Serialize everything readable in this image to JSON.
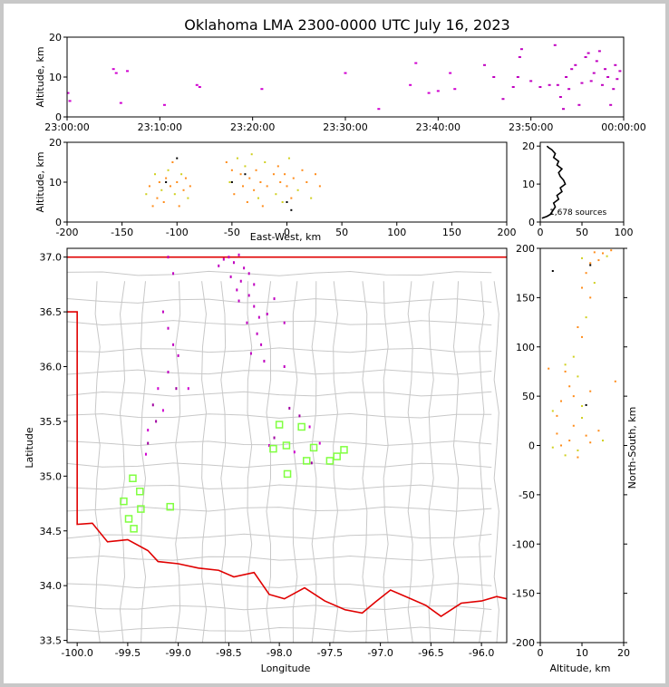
{
  "title": "Oklahoma LMA 2300-0000 UTC July 16, 2023",
  "colors": {
    "early": "#d000d0",
    "mid": "#ff8c1a",
    "late": "#d0d020",
    "station": "#80ff40",
    "border": "#e00000",
    "county": "#c8c8c8",
    "density": "#000000"
  },
  "chart_data": [
    {
      "type": "scatter",
      "name_key": "time-altitude",
      "xlabel": "",
      "ylabel": "Altitude, km",
      "xlim": [
        0,
        60
      ],
      "ylim": [
        0,
        20
      ],
      "xticks": [
        0,
        10,
        20,
        30,
        40,
        50,
        60
      ],
      "xtick_labels": [
        "23:00:00",
        "23:10:00",
        "23:20:00",
        "23:30:00",
        "23:40:00",
        "23:50:00",
        "00:00:00"
      ],
      "yticks": [
        0,
        10,
        20
      ],
      "points": [
        [
          0.1,
          6
        ],
        [
          0.3,
          4
        ],
        [
          5,
          12
        ],
        [
          5.3,
          11
        ],
        [
          6.5,
          11.5
        ],
        [
          5.8,
          3.5
        ],
        [
          10.5,
          3
        ],
        [
          14,
          8
        ],
        [
          14.3,
          7.5
        ],
        [
          21,
          7
        ],
        [
          30,
          11
        ],
        [
          33.6,
          2
        ],
        [
          37,
          8
        ],
        [
          37.6,
          13.5
        ],
        [
          39,
          6
        ],
        [
          40,
          6.5
        ],
        [
          41.3,
          11
        ],
        [
          41.8,
          7
        ],
        [
          45,
          13
        ],
        [
          46,
          10
        ],
        [
          47,
          4.5
        ],
        [
          48.1,
          7.5
        ],
        [
          48.6,
          10
        ],
        [
          48.8,
          15
        ],
        [
          49,
          17
        ],
        [
          50,
          9
        ],
        [
          51,
          7.5
        ],
        [
          52,
          8
        ],
        [
          52.6,
          18
        ],
        [
          52.9,
          8
        ],
        [
          53.2,
          5
        ],
        [
          53.5,
          2
        ],
        [
          53.8,
          10
        ],
        [
          54.1,
          7
        ],
        [
          54.4,
          12
        ],
        [
          54.8,
          13
        ],
        [
          55.2,
          3
        ],
        [
          55.5,
          8.5
        ],
        [
          55.9,
          15
        ],
        [
          56.2,
          16
        ],
        [
          56.5,
          9
        ],
        [
          56.8,
          11
        ],
        [
          57.1,
          14
        ],
        [
          57.4,
          16.5
        ],
        [
          57.7,
          8
        ],
        [
          58,
          12
        ],
        [
          58.3,
          10
        ],
        [
          58.6,
          3
        ],
        [
          58.9,
          7
        ],
        [
          59.1,
          13
        ],
        [
          59.3,
          9.5
        ],
        [
          59.6,
          11.5
        ]
      ]
    },
    {
      "type": "scatter",
      "name_key": "east-west-altitude",
      "xlabel": "East-West, km",
      "ylabel": "Altitude, km",
      "xlim": [
        -200,
        200
      ],
      "ylim": [
        0,
        20
      ],
      "xticks": [
        -200,
        -150,
        -100,
        -50,
        0,
        50,
        100,
        150,
        200
      ],
      "yticks": [
        0,
        10,
        20
      ],
      "points": [
        [
          -128,
          7
        ],
        [
          -125,
          9
        ],
        [
          -122,
          4
        ],
        [
          -120,
          12
        ],
        [
          -118,
          6
        ],
        [
          -116,
          10
        ],
        [
          -114,
          8
        ],
        [
          -112,
          5
        ],
        [
          -110,
          11
        ],
        [
          -108,
          13
        ],
        [
          -106,
          9
        ],
        [
          -104,
          15
        ],
        [
          -102,
          7
        ],
        [
          -100,
          10
        ],
        [
          -98,
          4
        ],
        [
          -96,
          12
        ],
        [
          -94,
          8
        ],
        [
          -92,
          11
        ],
        [
          -90,
          6
        ],
        [
          -88,
          9
        ],
        [
          -55,
          15
        ],
        [
          -52,
          10
        ],
        [
          -50,
          13
        ],
        [
          -48,
          7
        ],
        [
          -45,
          16
        ],
        [
          -42,
          12
        ],
        [
          -40,
          9
        ],
        [
          -38,
          14
        ],
        [
          -36,
          5
        ],
        [
          -34,
          11
        ],
        [
          -32,
          17
        ],
        [
          -30,
          8
        ],
        [
          -28,
          13
        ],
        [
          -26,
          6
        ],
        [
          -24,
          10
        ],
        [
          -22,
          4
        ],
        [
          -20,
          15
        ],
        [
          -18,
          9
        ],
        [
          -12,
          12
        ],
        [
          -10,
          7
        ],
        [
          -8,
          14
        ],
        [
          -6,
          10
        ],
        [
          -4,
          5
        ],
        [
          -2,
          12
        ],
        [
          0,
          9
        ],
        [
          2,
          16
        ],
        [
          4,
          6
        ],
        [
          6,
          11
        ],
        [
          10,
          8
        ],
        [
          14,
          13
        ],
        [
          18,
          10
        ],
        [
          22,
          6
        ],
        [
          26,
          12
        ],
        [
          30,
          9
        ]
      ],
      "dark_points": [
        [
          -110,
          10
        ],
        [
          -100,
          16
        ],
        [
          -50,
          10
        ],
        [
          -38,
          12
        ],
        [
          0,
          5
        ],
        [
          4,
          3
        ]
      ]
    },
    {
      "type": "line",
      "name_key": "altitude-density",
      "xlim": [
        0,
        100
      ],
      "ylim": [
        0,
        21
      ],
      "xticks": [
        0,
        50,
        100
      ],
      "yticks": [
        0,
        10,
        20
      ],
      "annotation": "1,678 sources",
      "profile": [
        [
          2,
          1
        ],
        [
          8,
          1.5
        ],
        [
          12,
          2
        ],
        [
          15,
          3
        ],
        [
          18,
          4
        ],
        [
          16,
          5
        ],
        [
          22,
          6
        ],
        [
          20,
          7
        ],
        [
          26,
          8
        ],
        [
          24,
          9
        ],
        [
          30,
          10
        ],
        [
          28,
          11
        ],
        [
          24,
          12
        ],
        [
          22,
          13
        ],
        [
          26,
          14
        ],
        [
          20,
          15
        ],
        [
          22,
          16
        ],
        [
          16,
          17
        ],
        [
          18,
          18
        ],
        [
          14,
          19
        ],
        [
          10,
          19.6
        ],
        [
          8,
          20
        ]
      ]
    },
    {
      "type": "scatter",
      "name_key": "plan-view",
      "xlabel": "Longitude",
      "ylabel": "Latitude",
      "xlim": [
        -100.1,
        -95.75
      ],
      "ylim": [
        33.48,
        37.08
      ],
      "xticks": [
        -100.0,
        -99.5,
        -99.0,
        -98.5,
        -98.0,
        -97.5,
        -97.0,
        -96.5,
        -96.0
      ],
      "xtick_labels": [
        "-100.0",
        "-99.5",
        "-99.0",
        "-98.5",
        "-98.0",
        "-97.5",
        "-97.0",
        "-96.5",
        "-96.0"
      ],
      "yticks": [
        33.5,
        34.0,
        34.5,
        35.0,
        35.5,
        36.0,
        36.5,
        37.0
      ],
      "ytick_labels": [
        "33.5",
        "34.0",
        "34.5",
        "35.0",
        "35.5",
        "36.0",
        "36.5",
        "37.0"
      ],
      "sources": [
        [
          -98.5,
          37.0
        ],
        [
          -98.45,
          36.95
        ],
        [
          -98.4,
          37.02
        ],
        [
          -98.35,
          36.9
        ],
        [
          -98.3,
          36.85
        ],
        [
          -98.38,
          36.78
        ],
        [
          -98.42,
          36.7
        ],
        [
          -98.3,
          36.65
        ],
        [
          -98.25,
          36.55
        ],
        [
          -98.2,
          36.45
        ],
        [
          -98.32,
          36.4
        ],
        [
          -98.22,
          36.3
        ],
        [
          -98.18,
          36.2
        ],
        [
          -98.28,
          36.12
        ],
        [
          -98.15,
          36.05
        ],
        [
          -98.55,
          36.98
        ],
        [
          -98.6,
          36.92
        ],
        [
          -98.48,
          36.82
        ],
        [
          -98.4,
          36.6
        ],
        [
          -98.25,
          36.75
        ],
        [
          -98.12,
          36.48
        ],
        [
          -98.05,
          36.62
        ],
        [
          -97.95,
          36.4
        ],
        [
          -97.95,
          36.0
        ],
        [
          -99.1,
          37.0
        ],
        [
          -99.05,
          36.85
        ],
        [
          -99.15,
          36.5
        ],
        [
          -99.1,
          36.35
        ],
        [
          -99.05,
          36.2
        ],
        [
          -99.0,
          36.1
        ],
        [
          -99.1,
          35.95
        ],
        [
          -99.2,
          35.8
        ],
        [
          -99.25,
          35.65
        ],
        [
          -99.15,
          35.6
        ],
        [
          -99.22,
          35.5
        ],
        [
          -99.3,
          35.42
        ],
        [
          -99.3,
          35.3
        ],
        [
          -99.32,
          35.2
        ],
        [
          -99.02,
          35.8
        ],
        [
          -98.9,
          35.8
        ],
        [
          -98.05,
          35.35
        ],
        [
          -98.1,
          35.28
        ],
        [
          -97.9,
          35.62
        ],
        [
          -97.85,
          35.22
        ],
        [
          -97.8,
          35.55
        ],
        [
          -97.6,
          35.3
        ],
        [
          -97.68,
          35.12
        ],
        [
          -97.7,
          35.45
        ]
      ],
      "stations": [
        [
          -98.0,
          35.47
        ],
        [
          -98.06,
          35.25
        ],
        [
          -97.93,
          35.28
        ],
        [
          -97.92,
          35.02
        ],
        [
          -97.78,
          35.45
        ],
        [
          -97.73,
          35.14
        ],
        [
          -97.66,
          35.26
        ],
        [
          -97.5,
          35.14
        ],
        [
          -97.43,
          35.18
        ],
        [
          -97.36,
          35.24
        ],
        [
          -99.45,
          34.98
        ],
        [
          -99.38,
          34.86
        ],
        [
          -99.54,
          34.77
        ],
        [
          -99.37,
          34.7
        ],
        [
          -99.08,
          34.72
        ],
        [
          -99.49,
          34.61
        ],
        [
          -99.44,
          34.52
        ]
      ]
    },
    {
      "type": "scatter",
      "name_key": "altitude-north-south",
      "xlabel": "Altitude, km",
      "ylabel": "North-South, km",
      "xlim": [
        0,
        20
      ],
      "ylim": [
        -200,
        200
      ],
      "xticks": [
        0,
        10,
        20
      ],
      "yticks": [
        -200,
        -150,
        -100,
        -50,
        0,
        50,
        100,
        150,
        200
      ],
      "points": [
        [
          3,
          -2
        ],
        [
          5,
          0
        ],
        [
          7,
          5
        ],
        [
          9,
          -5
        ],
        [
          11,
          10
        ],
        [
          12,
          3
        ],
        [
          6,
          -10
        ],
        [
          8,
          20
        ],
        [
          4,
          30
        ],
        [
          10,
          40
        ],
        [
          14,
          15
        ],
        [
          7,
          60
        ],
        [
          9,
          70
        ],
        [
          6,
          75
        ],
        [
          12,
          55
        ],
        [
          8,
          90
        ],
        [
          10,
          110
        ],
        [
          9,
          120
        ],
        [
          11,
          130
        ],
        [
          12,
          150
        ],
        [
          10,
          160
        ],
        [
          13,
          165
        ],
        [
          11,
          175
        ],
        [
          12,
          185
        ],
        [
          10,
          190
        ],
        [
          14,
          188
        ],
        [
          15,
          195
        ],
        [
          16,
          192
        ],
        [
          17,
          198
        ],
        [
          13,
          196
        ],
        [
          3,
          35
        ],
        [
          5,
          45
        ],
        [
          8,
          50
        ],
        [
          15,
          5
        ],
        [
          18,
          65
        ],
        [
          2,
          78
        ],
        [
          6,
          82
        ],
        [
          4,
          12
        ],
        [
          9,
          -12
        ],
        [
          10,
          28
        ]
      ],
      "dark_points": [
        [
          11,
          41
        ],
        [
          3,
          177
        ],
        [
          12,
          183
        ]
      ]
    }
  ]
}
